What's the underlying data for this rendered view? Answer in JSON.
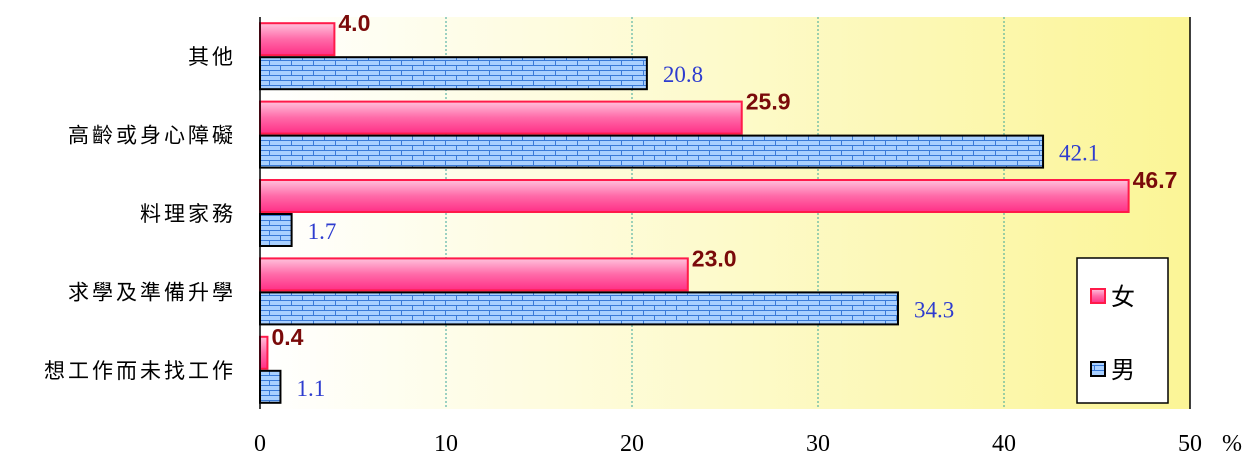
{
  "chart_data": {
    "type": "bar",
    "orientation": "horizontal",
    "categories": [
      "其他",
      "高齡或身心障礙",
      "料理家務",
      "求學及準備升學",
      "想工作而未找工作"
    ],
    "series": [
      {
        "name": "女",
        "values": [
          4.0,
          25.9,
          46.7,
          23.0,
          0.4
        ],
        "labels": [
          "4.0",
          "25.9",
          "46.7",
          "23.0",
          "0.4"
        ],
        "color": "#ff66aa"
      },
      {
        "name": "男",
        "values": [
          20.8,
          42.1,
          1.7,
          34.3,
          1.1
        ],
        "labels": [
          "20.8",
          "42.1",
          "1.7",
          "34.3",
          "1.1"
        ],
        "color": "#9cc8ff"
      }
    ],
    "xlim": [
      0,
      50
    ],
    "ticks": [
      "0",
      "10",
      "20",
      "30",
      "40",
      "50"
    ],
    "unit": "%",
    "grid": true,
    "legend_position": "bottom-right",
    "colors": {
      "female_border": "#ff1a4a",
      "male_border": "#000000",
      "female_value": "#7a0a0a",
      "male_value": "#2e3ccf"
    }
  }
}
